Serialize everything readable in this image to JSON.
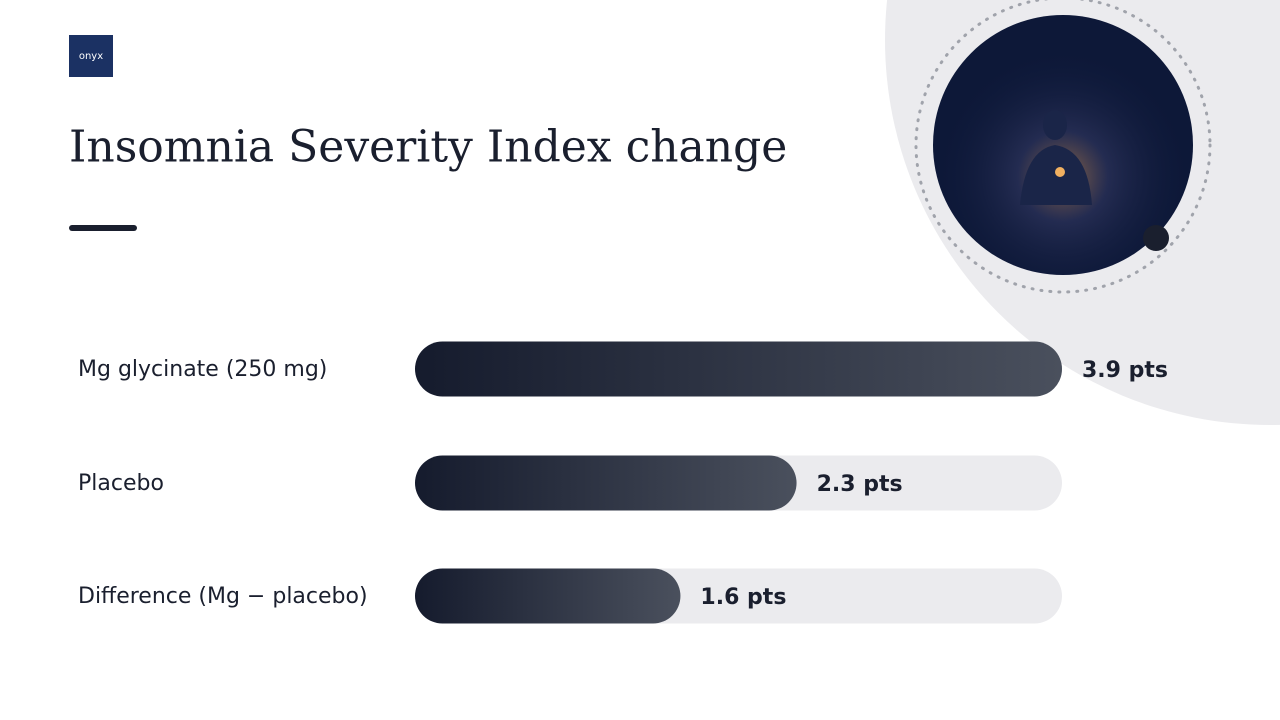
{
  "logo": "onyx",
  "chart_data": {
    "type": "hbar",
    "title": "Insomnia Severity Index change",
    "categories": [
      "Mg glycinate (250 mg)",
      "Placebo",
      "Difference (Mg − placebo)"
    ],
    "values": [
      3.9,
      2.3,
      1.6
    ],
    "value_labels": [
      "3.9 pts",
      "2.3 pts",
      "1.6 pts"
    ],
    "color": "#1a2033",
    "xlim": [
      0,
      3.9
    ]
  }
}
